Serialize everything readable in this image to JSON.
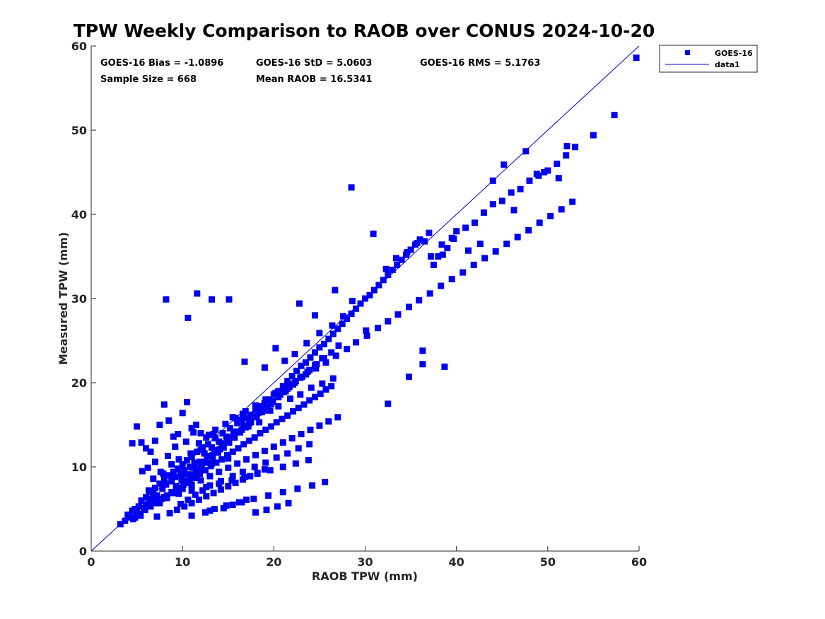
{
  "chart_data": {
    "type": "scatter",
    "title": "TPW Weekly Comparison to RAOB over CONUS 2024-10-20",
    "xlabel": "RAOB TPW (mm)",
    "ylabel": "Measured TPW (mm)",
    "xlim": [
      0,
      60
    ],
    "ylim": [
      0,
      60
    ],
    "xticks": [
      "0",
      "10",
      "20",
      "30",
      "40",
      "50",
      "60"
    ],
    "yticks": [
      "0",
      "10",
      "20",
      "30",
      "40",
      "50",
      "60"
    ],
    "grid": false,
    "legend_position": "outside-top-right",
    "legend": [
      {
        "label": "GOES-16",
        "marker": "square",
        "color": "#0000ee"
      },
      {
        "label": "data1",
        "marker": "line",
        "color": "#0000ee"
      }
    ],
    "stats": {
      "bias": "GOES-16 Bias = -1.0896",
      "std": "GOES-16 StD = 5.0603",
      "rms": "GOES-16 RMS = 5.1763",
      "sample_size": "Sample Size = 668",
      "mean_raob": "Mean RAOB = 16.5341"
    },
    "reference_line": {
      "name": "data1",
      "x": [
        0,
        60
      ],
      "y": [
        0,
        60
      ],
      "color": "#0000cc"
    },
    "series": [
      {
        "name": "GOES-16",
        "color": "#0000ee",
        "x": [
          3.2,
          3.7,
          4.0,
          4.2,
          4.5,
          4.6,
          4.8,
          5.0,
          5.2,
          5.4,
          5.5,
          5.8,
          6.0,
          6.2,
          6.4,
          6.6,
          6.8,
          7.0,
          7.2,
          7.5,
          7.8,
          8.0,
          8.2,
          8.5,
          8.8,
          9.0,
          9.2,
          9.5,
          9.8,
          10.0,
          10.2,
          10.5,
          10.8,
          11.0,
          11.3,
          11.6,
          12.0,
          12.4,
          12.8,
          13.2,
          13.6,
          14.0,
          14.4,
          14.8,
          15.2,
          15.6,
          16.0,
          16.5,
          17.0,
          17.5,
          18.0,
          18.5,
          19.0,
          19.5,
          20.0,
          20.5,
          21.0,
          21.5,
          22.0,
          22.5,
          23.0,
          23.5,
          24.0,
          24.5,
          25.0,
          25.5,
          26.0,
          26.5,
          27.0,
          27.5,
          28.0,
          28.5,
          29.0,
          29.5,
          30.0,
          30.5,
          31.0,
          31.5,
          32.0,
          32.5,
          33.0,
          33.5,
          34.0,
          34.5,
          35.0,
          35.5,
          36.0,
          36.5,
          37.0,
          37.5,
          38.0,
          38.5,
          39.0,
          39.5,
          40.0,
          41.0,
          42.0,
          43.0,
          44.0,
          45.0,
          46.0,
          47.0,
          48.0,
          49.0,
          50.0,
          51.0,
          52.0,
          53.0,
          55.0,
          57.3,
          59.7,
          4.5,
          5.0,
          5.5,
          6.0,
          6.5,
          7.0,
          7.5,
          8.0,
          8.5,
          9.0,
          9.5,
          10.0,
          10.5,
          11.0,
          11.5,
          12.0,
          6.2,
          7.0,
          7.6,
          8.4,
          9.2,
          10.4,
          11.2,
          12.2,
          5.6,
          6.8,
          7.9,
          8.8,
          9.6,
          10.9,
          11.8,
          12.6,
          13.4,
          6.3,
          8.1,
          10.8,
          11.5,
          12.0,
          13.2,
          15.0,
          6.4,
          8.0,
          9.6,
          11.0,
          12.6,
          14.0,
          15.4,
          16.8,
          18.2,
          19.6,
          21.0,
          22.4,
          23.8,
          13.0,
          14.5,
          15.5,
          16.2,
          17.0,
          18.0,
          19.2,
          20.4,
          21.6,
          11.0,
          12.5,
          13.5,
          14.8,
          16.5,
          17.8,
          19.4,
          21.0,
          22.6,
          24.2,
          25.6,
          9.8,
          10.6,
          11.4,
          12.2,
          13.0,
          14.2,
          15.5,
          16.6,
          17.9,
          19.1,
          20.3,
          21.5,
          22.7,
          23.9,
          7.2,
          8.6,
          9.4,
          10.2,
          11.0,
          11.8,
          12.6,
          13.4,
          14.2,
          15.0,
          15.8,
          16.6,
          17.4,
          18.2,
          19.0,
          5.0,
          6.0,
          7.0,
          8.0,
          9.0,
          10.0,
          11.0,
          12.0,
          13.0,
          14.0,
          15.0,
          16.0,
          17.0,
          18.0,
          19.0,
          20.0,
          21.0,
          22.0,
          23.0,
          24.0,
          25.0,
          26.0,
          27.0,
          15.5,
          16.6,
          17.2,
          18.4,
          19.6,
          20.5,
          21.8,
          22.9,
          24.1,
          25.3,
          26.5,
          12.9,
          13.6,
          14.7,
          15.8,
          16.9,
          18.0,
          19.1,
          20.2,
          21.3,
          22.4,
          23.5,
          24.6,
          25.7,
          26.8,
          28.0,
          29.0,
          30.2,
          31.4,
          32.5,
          33.6,
          34.8,
          35.9,
          37.1,
          38.3,
          39.5,
          40.7,
          41.9,
          43.1,
          44.3,
          45.5,
          46.7,
          47.9,
          49.1,
          50.3,
          51.5,
          52.7,
          8.2,
          10.6,
          11.6,
          13.2,
          15.1,
          28.5,
          36.3,
          36.3,
          38.7,
          34.8,
          32.5,
          22.8,
          26.7,
          24.5,
          16.8,
          19.0,
          20.2,
          21.2,
          22.3,
          23.6,
          25.0,
          26.4,
          27.6,
          28.6,
          30.1,
          30.9,
          32.3,
          33.4,
          34.6,
          35.7,
          37.2,
          38.4,
          39.7,
          41.3,
          42.6,
          44.0,
          45.2,
          46.3,
          47.6,
          48.8,
          49.6,
          51.2,
          52.1,
          10.3,
          10.9,
          11.7,
          12.5,
          13.3,
          14.1,
          14.9,
          15.7,
          16.5,
          17.3,
          18.1,
          18.9,
          19.7,
          20.5,
          21.3,
          22.1,
          22.9,
          23.7,
          24.5,
          25.3,
          8.8,
          9.3,
          9.9,
          10.4,
          11.1,
          11.9,
          12.7,
          13.5,
          14.3,
          15.1,
          15.9,
          16.7,
          17.5,
          18.3,
          19.1,
          19.9,
          20.7,
          21.5,
          22.3,
          23.1,
          23.9,
          24.7,
          25.5,
          26.3,
          27.1,
          7.5,
          8.3,
          9.1,
          9.7,
          10.3,
          10.9,
          11.5,
          12.1,
          12.7,
          13.3,
          13.9,
          14.5,
          15.1,
          15.7,
          16.3,
          16.9,
          17.5,
          18.1,
          18.7,
          19.3,
          19.9,
          20.5,
          21.1,
          21.7,
          4.8,
          5.3,
          5.9,
          6.5,
          7.1,
          7.7,
          8.3,
          8.9,
          9.5,
          10.1,
          10.7,
          11.3,
          11.9,
          12.5,
          13.1,
          13.7,
          14.3,
          14.9,
          15.5,
          16.1,
          16.7,
          17.3,
          17.9,
          18.5,
          19.1,
          19.7,
          20.3,
          20.9,
          21.5,
          22.1,
          22.7,
          23.3,
          23.9,
          24.5,
          25.1,
          25.7,
          26.3
        ],
        "y": [
          3.2,
          3.6,
          4.3,
          4.0,
          4.8,
          3.8,
          5.0,
          4.6,
          5.3,
          4.2,
          6.0,
          5.1,
          6.4,
          5.5,
          7.0,
          6.2,
          6.8,
          7.5,
          6.6,
          8.0,
          7.4,
          8.5,
          7.9,
          9.0,
          8.3,
          9.4,
          8.8,
          9.8,
          9.1,
          10.3,
          9.6,
          10.8,
          10.0,
          11.2,
          10.5,
          11.8,
          12.0,
          11.6,
          12.7,
          12.3,
          13.4,
          13.0,
          14.0,
          13.6,
          14.6,
          14.2,
          15.2,
          15.6,
          15.8,
          16.2,
          16.8,
          17.2,
          17.6,
          18.0,
          18.6,
          19.0,
          19.6,
          20.2,
          20.8,
          21.4,
          22.0,
          22.4,
          23.0,
          23.6,
          24.2,
          24.6,
          25.2,
          25.8,
          26.4,
          27.0,
          27.6,
          28.2,
          28.8,
          29.4,
          30.0,
          30.4,
          31.0,
          31.6,
          32.2,
          32.8,
          33.4,
          34.0,
          34.6,
          35.2,
          35.8,
          36.4,
          37.0,
          36.8,
          37.8,
          34.0,
          35.0,
          35.2,
          36.0,
          37.2,
          38.0,
          38.4,
          39.0,
          40.2,
          41.2,
          41.6,
          42.6,
          43.0,
          44.0,
          44.6,
          45.2,
          46.0,
          47.0,
          48.0,
          49.4,
          51.8,
          58.6,
          12.8,
          14.8,
          12.9,
          12.2,
          11.8,
          13.1,
          15.0,
          17.4,
          15.5,
          13.6,
          13.9,
          16.4,
          17.7,
          14.6,
          15.0,
          14.0,
          9.9,
          10.6,
          9.4,
          11.3,
          12.4,
          13.0,
          14.1,
          12.3,
          9.5,
          8.6,
          9.2,
          10.3,
          10.9,
          11.6,
          12.8,
          13.5,
          13.9,
          7.2,
          7.9,
          8.1,
          8.7,
          9.7,
          10.4,
          11.0,
          6.0,
          6.4,
          6.8,
          7.2,
          7.6,
          8.0,
          8.4,
          8.8,
          9.2,
          9.6,
          10.0,
          10.4,
          10.8,
          4.8,
          5.1,
          5.5,
          5.8,
          6.1,
          4.6,
          4.9,
          5.3,
          5.7,
          4.2,
          4.6,
          5.0,
          5.4,
          5.8,
          6.2,
          6.6,
          7.0,
          7.4,
          7.8,
          8.2,
          5.6,
          6.1,
          6.7,
          7.2,
          7.8,
          8.3,
          8.9,
          9.4,
          10.0,
          10.5,
          11.1,
          11.6,
          12.2,
          12.7,
          4.1,
          4.5,
          4.9,
          5.3,
          5.7,
          6.1,
          6.5,
          6.9,
          7.3,
          7.7,
          8.1,
          8.5,
          8.9,
          9.3,
          9.7,
          4.9,
          5.4,
          5.9,
          6.4,
          6.9,
          7.4,
          7.9,
          8.4,
          8.9,
          9.4,
          9.9,
          10.4,
          10.9,
          11.4,
          11.9,
          12.4,
          12.9,
          13.4,
          13.9,
          14.4,
          14.9,
          15.4,
          15.9,
          15.9,
          16.3,
          14.8,
          15.3,
          16.7,
          17.2,
          18.1,
          18.6,
          19.4,
          19.9,
          20.5,
          13.8,
          14.4,
          15.1,
          15.8,
          16.6,
          17.3,
          18.0,
          18.8,
          19.5,
          20.2,
          21.0,
          21.7,
          22.4,
          23.2,
          24.0,
          24.8,
          25.6,
          26.5,
          27.3,
          28.1,
          29.0,
          29.8,
          30.6,
          31.5,
          32.3,
          33.1,
          34.0,
          34.8,
          35.6,
          36.5,
          37.3,
          38.1,
          39.0,
          39.8,
          40.6,
          41.5,
          29.9,
          27.7,
          30.6,
          29.9,
          29.9,
          43.2,
          23.8,
          22.2,
          21.9,
          20.7,
          17.5,
          29.4,
          31.0,
          28.0,
          22.5,
          21.8,
          24.1,
          22.6,
          23.4,
          24.7,
          25.9,
          26.8,
          27.9,
          29.7,
          26.2,
          37.7,
          33.5,
          34.8,
          35.5,
          36.6,
          35.0,
          36.4,
          37.1,
          35.7,
          36.5,
          44.0,
          45.9,
          40.5,
          47.5,
          44.8,
          45.0,
          44.3,
          48.1,
          8.3,
          9.1,
          9.8,
          10.6,
          11.4,
          12.1,
          12.9,
          13.7,
          14.4,
          15.2,
          16.0,
          16.7,
          17.5,
          18.3,
          19.0,
          19.8,
          20.6,
          21.3,
          22.1,
          22.9,
          7.0,
          7.7,
          8.4,
          9.1,
          9.9,
          10.6,
          11.3,
          12.0,
          12.8,
          13.5,
          14.2,
          14.9,
          15.7,
          16.4,
          17.1,
          17.8,
          18.6,
          19.3,
          20.0,
          20.7,
          21.5,
          22.2,
          22.9,
          23.6,
          24.4,
          5.7,
          6.3,
          6.9,
          7.5,
          8.1,
          8.7,
          9.3,
          9.9,
          10.5,
          11.1,
          11.7,
          12.3,
          12.9,
          13.5,
          14.1,
          14.7,
          15.3,
          15.9,
          16.5,
          17.1,
          17.7,
          18.3,
          18.9,
          19.5,
          4.0,
          4.4,
          4.9,
          5.3,
          5.7,
          6.2,
          6.6,
          7.0,
          7.5,
          7.9,
          8.3,
          8.8,
          9.2,
          9.6,
          10.1,
          10.5,
          10.9,
          11.4,
          11.8,
          12.2,
          12.7,
          13.1,
          13.5,
          14.0,
          14.4,
          14.8,
          15.3,
          15.7,
          16.1,
          16.6,
          17.0,
          17.4,
          17.9,
          18.3,
          18.7,
          19.2,
          19.6
        ]
      }
    ]
  }
}
